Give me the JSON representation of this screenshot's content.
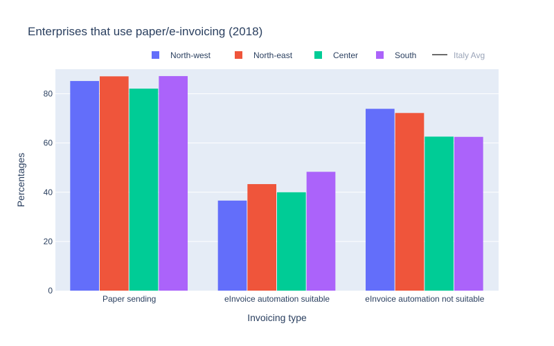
{
  "chart_data": {
    "type": "bar",
    "title": "Enterprises that use paper/e-invoicing (2018)",
    "xlabel": "Invoicing type",
    "ylabel": "Percentages",
    "categories": [
      "Paper sending",
      "eInvoice automation suitable",
      "eInvoice automation not suitable"
    ],
    "ylim": [
      0,
      90
    ],
    "yticks": [
      0,
      20,
      40,
      60,
      80
    ],
    "grid": true,
    "legend_position": "top-right",
    "series": [
      {
        "name": "North-west",
        "color": "#636efa",
        "values": [
          85.2,
          36.6,
          73.9
        ]
      },
      {
        "name": "North-east",
        "color": "#ef553b",
        "values": [
          87.1,
          43.3,
          72.2
        ]
      },
      {
        "name": "Center",
        "color": "#00cc96",
        "values": [
          82.1,
          40.0,
          62.6
        ]
      },
      {
        "name": "South",
        "color": "#ab63fa",
        "values": [
          87.2,
          48.3,
          62.5
        ]
      }
    ],
    "reference_line": {
      "name": "Italy Avg",
      "visible": false
    }
  },
  "colors": {
    "plot_background": "#e5ecf6",
    "gridline": "#ffffff",
    "text": "#2a3f5f",
    "faded_text": "#9aa4b8",
    "reference_line": "#6b6b6b"
  }
}
